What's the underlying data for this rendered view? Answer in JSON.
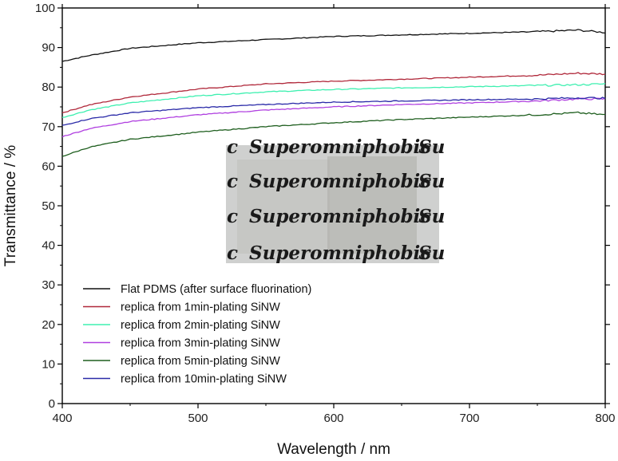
{
  "chart_data": {
    "type": "line",
    "title": "",
    "xlabel": "Wavelength / nm",
    "ylabel": "Transmittance / %",
    "xlim": [
      400,
      800
    ],
    "ylim": [
      0,
      100
    ],
    "x_ticks": [
      400,
      500,
      600,
      700,
      800
    ],
    "y_ticks": [
      0,
      10,
      20,
      30,
      40,
      50,
      60,
      70,
      80,
      90,
      100
    ],
    "grid": false,
    "legend_position": "lower-left",
    "x": [
      400,
      420,
      450,
      500,
      550,
      600,
      650,
      700,
      750,
      780,
      800
    ],
    "series": [
      {
        "name": "Flat PDMS (after surface fluorination)",
        "color": "#111111",
        "values": [
          86.5,
          88.0,
          89.8,
          91.2,
          92.0,
          92.8,
          93.2,
          93.6,
          94.0,
          94.4,
          93.8
        ]
      },
      {
        "name": "replica from 1min-plating SiNW",
        "color": "#b0283a",
        "values": [
          73.5,
          75.5,
          77.5,
          79.5,
          80.8,
          81.5,
          82.0,
          82.5,
          83.0,
          83.5,
          83.3
        ]
      },
      {
        "name": "replica from 2min-plating SiNW",
        "color": "#3ef0b0",
        "values": [
          72.3,
          74.2,
          76.0,
          77.8,
          78.8,
          79.4,
          79.8,
          80.1,
          80.4,
          80.6,
          80.8
        ]
      },
      {
        "name": "replica from 3min-plating SiNW",
        "color": "#b040e0",
        "values": [
          67.5,
          69.5,
          71.3,
          73.0,
          74.2,
          75.0,
          75.6,
          76.0,
          76.5,
          77.0,
          77.0
        ]
      },
      {
        "name": "replica from 5min-plating SiNW",
        "color": "#1e5e1e",
        "values": [
          62.5,
          64.8,
          66.8,
          68.6,
          70.0,
          71.0,
          71.8,
          72.4,
          73.0,
          73.5,
          73.0
        ]
      },
      {
        "name": "replica from 10min-plating SiNW",
        "color": "#2a2aa8",
        "values": [
          70.3,
          72.0,
          73.5,
          74.8,
          75.6,
          76.2,
          76.5,
          76.8,
          77.0,
          77.3,
          77.2
        ]
      }
    ],
    "inset_photo": {
      "caption_lines": [
        "Superomniphobic",
        "Superomniphobic",
        "Superomniphobic",
        "Superomniphobic"
      ],
      "edge_fragments_left": [
        "c",
        "c",
        "c",
        "c"
      ],
      "edge_fragments_right": [
        "Su",
        "Su",
        "Su",
        "Su"
      ],
      "background_color": "#cfd0cf",
      "pad_color": "#bfbfbb"
    }
  }
}
